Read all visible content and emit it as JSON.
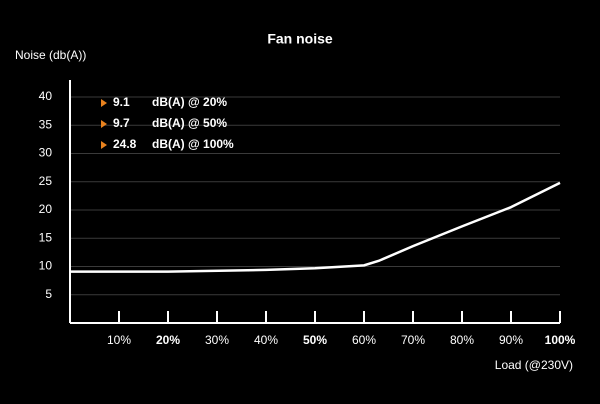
{
  "chart_data": {
    "type": "line",
    "title": "Fan noise",
    "y_label": "Noise (db(A))",
    "x_label": "Load (@230V)",
    "x": [
      0,
      20,
      40,
      50,
      60,
      63,
      70,
      80,
      90,
      100
    ],
    "series": [
      {
        "name": "Fan noise",
        "color": "#ffffff",
        "values": [
          9.1,
          9.1,
          9.4,
          9.7,
          10.2,
          11,
          13.6,
          17.1,
          20.5,
          24.8
        ]
      }
    ],
    "xlim": [
      0,
      100
    ],
    "ylim": [
      0,
      40
    ],
    "yticks": [
      5,
      10,
      15,
      20,
      25,
      30,
      35,
      40
    ],
    "xticks": [
      {
        "value": 10,
        "label": "10%"
      },
      {
        "value": 20,
        "label": "20%",
        "bold": true
      },
      {
        "value": 30,
        "label": "30%"
      },
      {
        "value": 40,
        "label": "40%"
      },
      {
        "value": 50,
        "label": "50%",
        "bold": true
      },
      {
        "value": 60,
        "label": "60%"
      },
      {
        "value": 70,
        "label": "70%"
      },
      {
        "value": 80,
        "label": "80%"
      },
      {
        "value": 90,
        "label": "90%"
      },
      {
        "value": 100,
        "label": "100%",
        "bold": true
      }
    ],
    "grid": true,
    "annotations": [
      {
        "value": 9.1,
        "text": "dB(A) @ 20%"
      },
      {
        "value": 9.7,
        "text": "dB(A) @ 50%"
      },
      {
        "value": 24.8,
        "text": "dB(A) @ 100%"
      }
    ],
    "annotation_color": "#e8821e"
  }
}
